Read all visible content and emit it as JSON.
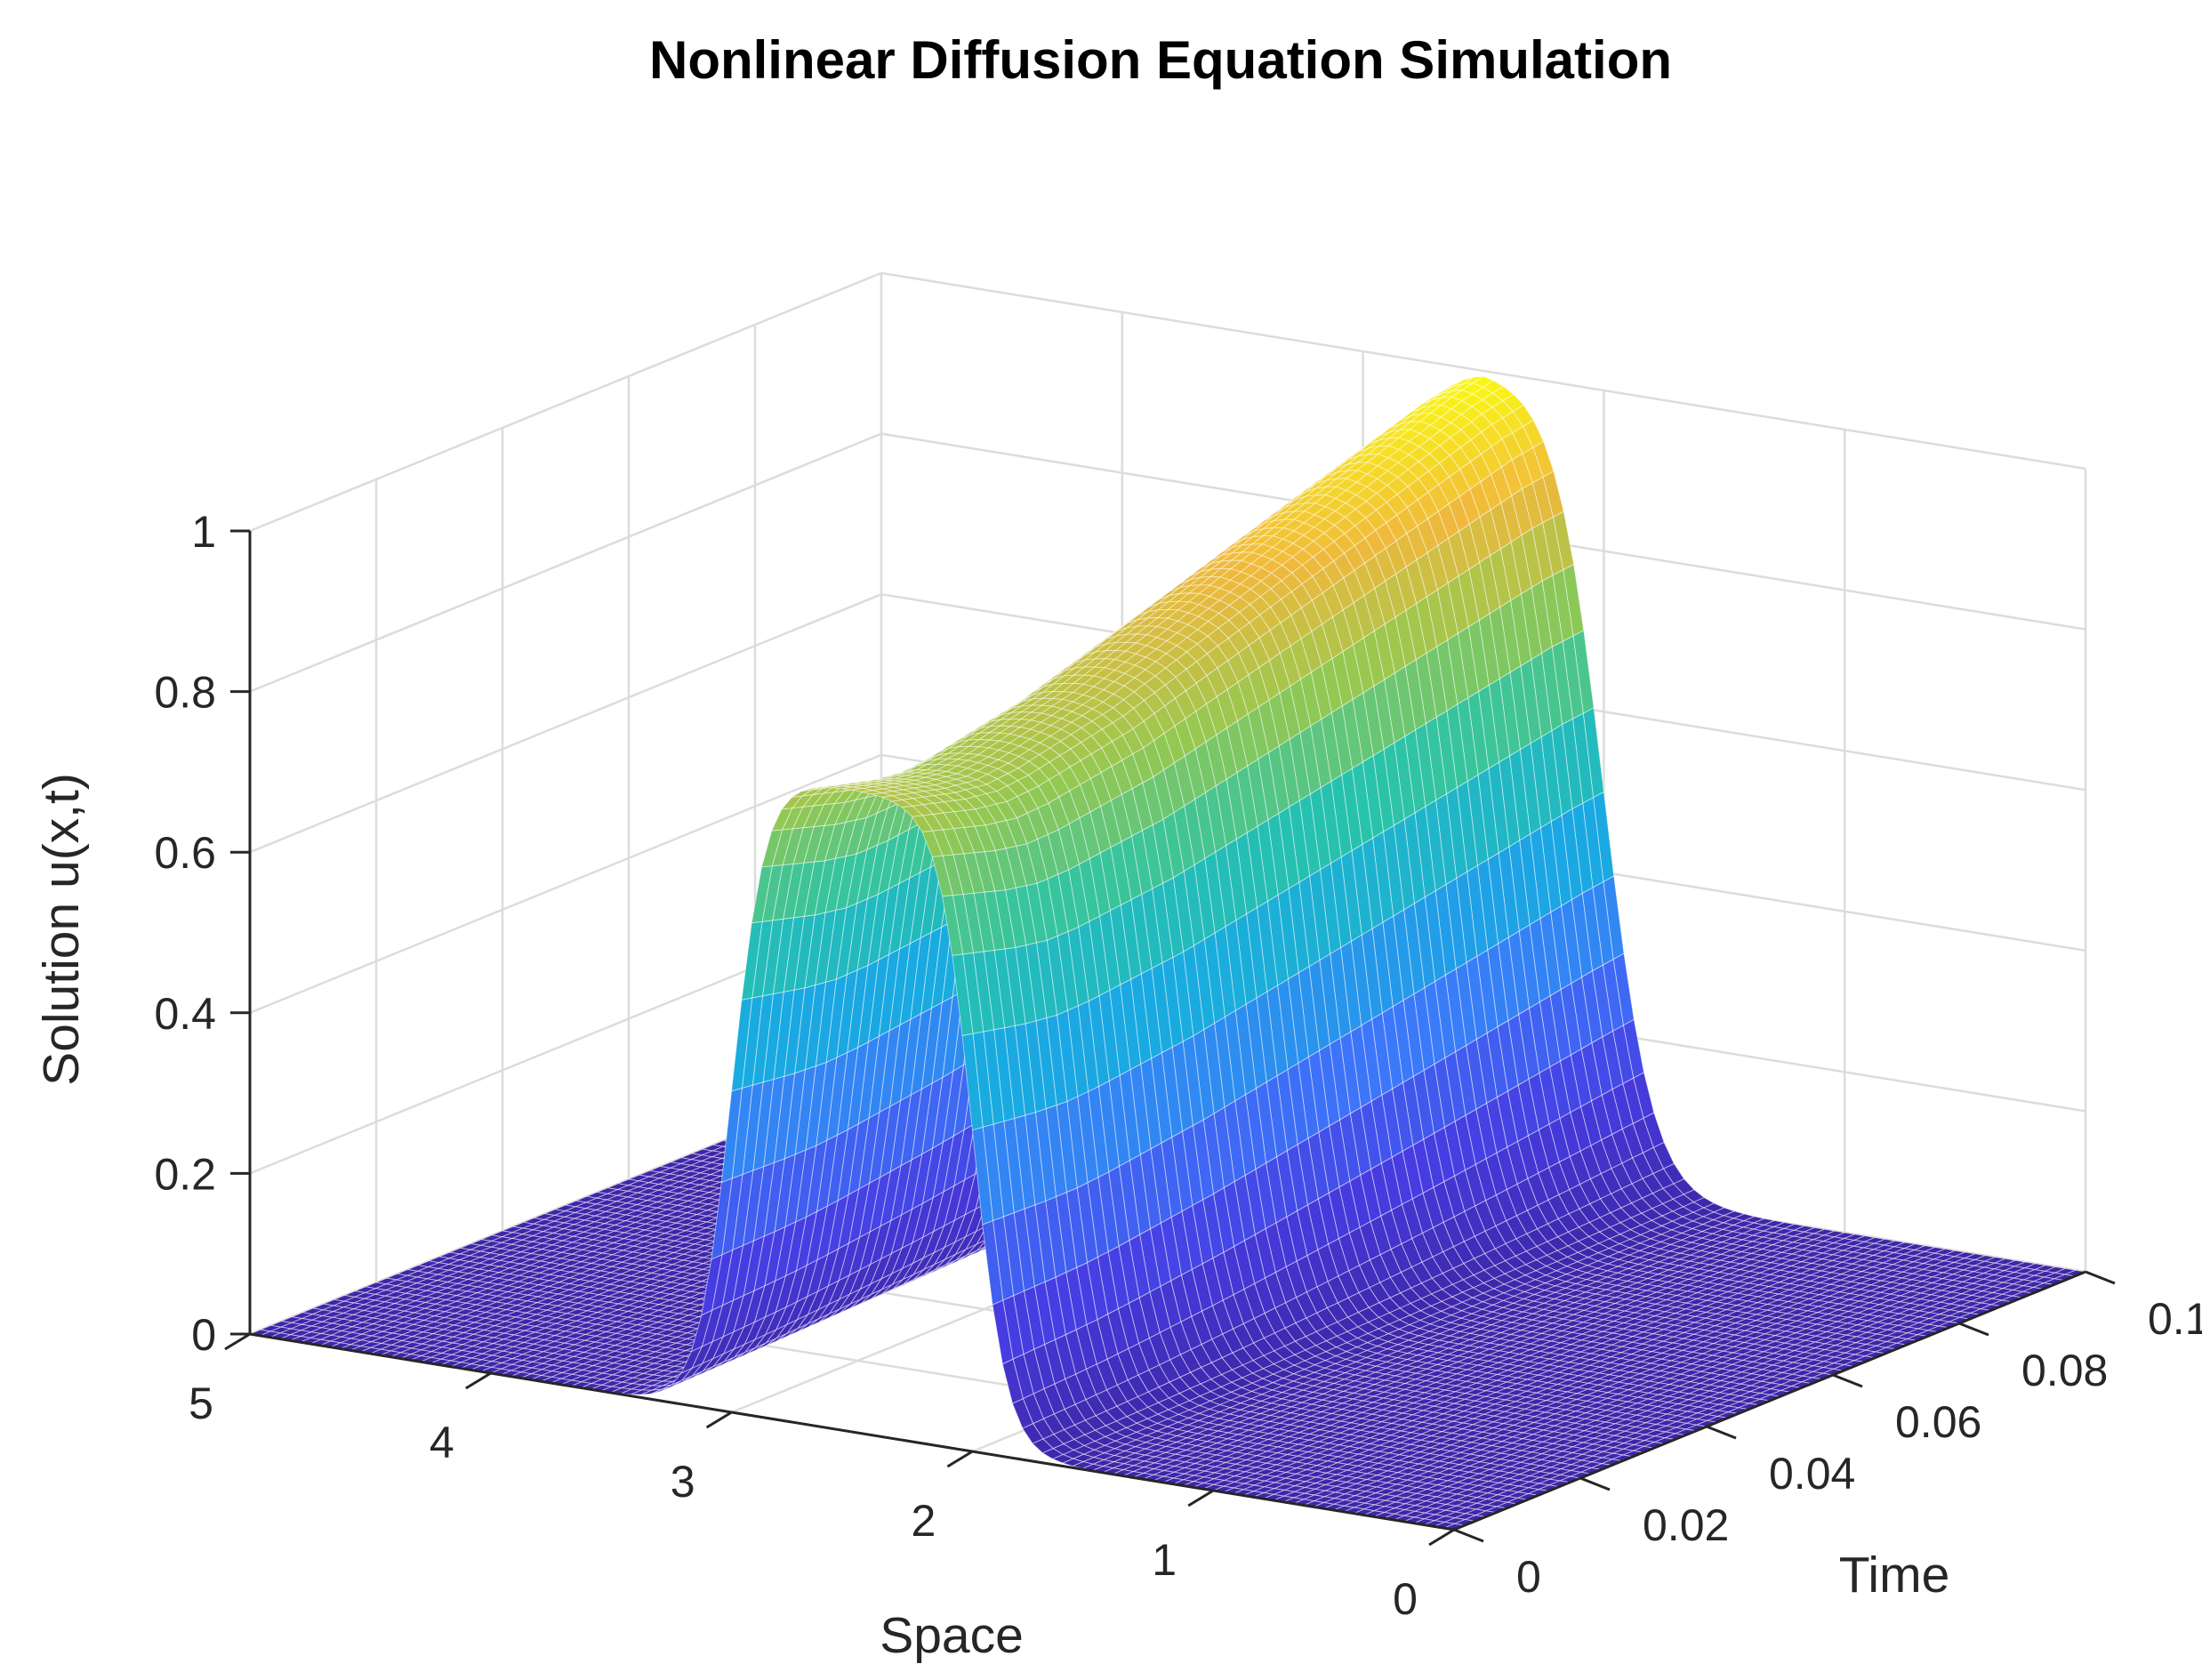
{
  "chart_data": {
    "type": "surface",
    "title": "Nonlinear Diffusion Equation Simulation",
    "xlabel": "Space",
    "ylabel": "Time",
    "zlabel": "Solution u(x,t)",
    "xlim": [
      0,
      5
    ],
    "ylim": [
      0,
      0.1
    ],
    "zlim": [
      0,
      1
    ],
    "xticks": [
      "0",
      "1",
      "2",
      "3",
      "4",
      "5"
    ],
    "yticks": [
      "0",
      "0.02",
      "0.04",
      "0.06",
      "0.08",
      "0.1"
    ],
    "zticks": [
      "0",
      "0.2",
      "0.4",
      "0.6",
      "0.8",
      "1"
    ],
    "grid": true,
    "colormap": "parula",
    "pulse_center_x": 2.5,
    "pulse_half_width_x": 0.5,
    "times": [
      0,
      0.005,
      0.01,
      0.015,
      0.02,
      0.025,
      0.03,
      0.035,
      0.04,
      0.045,
      0.05,
      0.055,
      0.06,
      0.065,
      0.07,
      0.075,
      0.08,
      0.085,
      0.09,
      0.095,
      0.1
    ],
    "peak_amplitude": [
      0.8,
      0.79,
      0.78,
      0.775,
      0.78,
      0.79,
      0.8,
      0.81,
      0.825,
      0.84,
      0.855,
      0.87,
      0.885,
      0.9,
      0.915,
      0.93,
      0.945,
      0.96,
      0.975,
      0.99,
      1.0
    ]
  }
}
